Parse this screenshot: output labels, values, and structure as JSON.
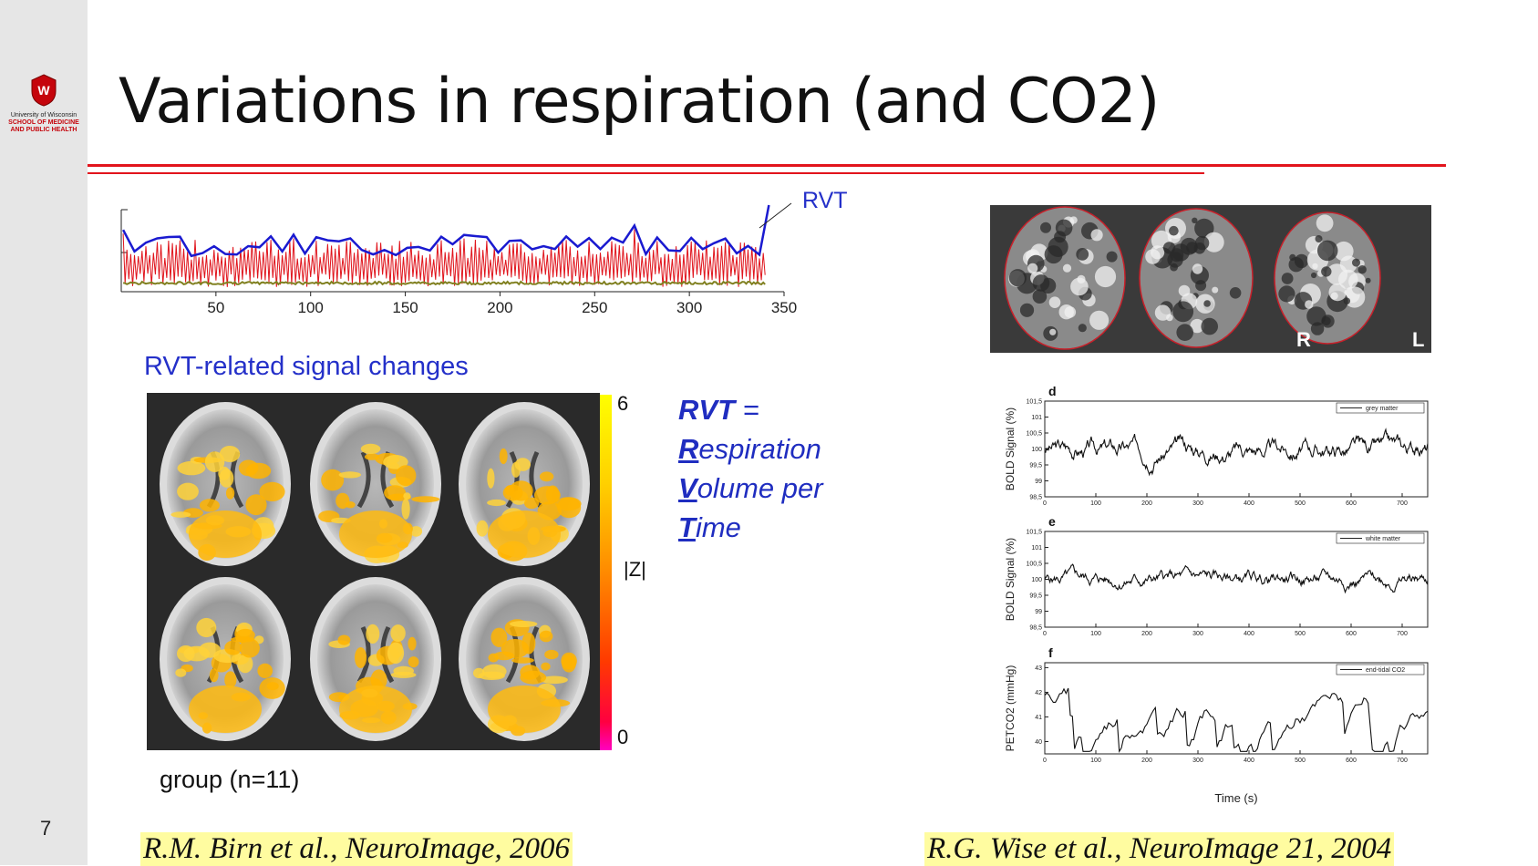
{
  "slide": {
    "title": "Variations in respiration (and CO2)",
    "number": "7"
  },
  "logo": {
    "line1": "University of Wisconsin",
    "line2": "SCHOOL OF MEDICINE",
    "line3": "AND PUBLIC HEALTH"
  },
  "colors": {
    "rule": "#e2141c",
    "accent_blue": "#2430c9",
    "highlight": "#fffca0",
    "rvt_trace": "#1a1ad0",
    "resp_trace": "#e0141c",
    "baseline_trace": "#808020"
  },
  "left": {
    "rvt_label": "RVT",
    "subtitle": "RVT-related signal changes",
    "colorbar": {
      "max": "6",
      "min": "0",
      "label": "|Z|"
    },
    "definition": {
      "line1_bold": "RVT",
      "line1_rest": " =",
      "line2_initial": "R",
      "line2_rest": "espiration",
      "line3_initial": "V",
      "line3_rest": "olume per",
      "line4_initial": "T",
      "line4_rest": "ime"
    },
    "group_label": "group (n=11)",
    "citation": "R.M. Birn et al., NeuroImage, 2006"
  },
  "right": {
    "mri_labels": {
      "right": "R",
      "left": "L"
    },
    "citation": "R.G. Wise et al., NeuroImage 21, 2004",
    "xlabel": "Time (s)"
  },
  "chart_data": [
    {
      "type": "line",
      "x_ticks": [
        "50",
        "100",
        "150",
        "200",
        "250",
        "300",
        "350"
      ],
      "xlim": [
        0,
        350
      ],
      "series": [
        {
          "name": "RVT"
        }
      ]
    },
    {
      "type": "line",
      "panel": "d",
      "ylabel": "BOLD Signal (%)",
      "y_ticks": [
        "101,5",
        "101",
        "100,5",
        "100",
        "99,5",
        "99",
        "98,5"
      ],
      "x_ticks": [
        "0",
        "100",
        "200",
        "300",
        "400",
        "500",
        "600",
        "700"
      ],
      "ylim": [
        98.5,
        101.5
      ],
      "xlim": [
        0,
        750
      ],
      "series": [
        {
          "name": "grey matter"
        }
      ]
    },
    {
      "type": "line",
      "panel": "e",
      "ylabel": "BOLD Signal (%)",
      "y_ticks": [
        "101,5",
        "101",
        "100,5",
        "100",
        "99,5",
        "99",
        "98,5"
      ],
      "x_ticks": [
        "0",
        "100",
        "200",
        "300",
        "400",
        "500",
        "600",
        "700"
      ],
      "ylim": [
        98.5,
        101.5
      ],
      "xlim": [
        0,
        750
      ],
      "series": [
        {
          "name": "white matter"
        }
      ]
    },
    {
      "type": "line",
      "panel": "f",
      "ylabel": "PETCO2 (mmHg)",
      "y_ticks": [
        "43",
        "42",
        "41",
        "40"
      ],
      "x_ticks": [
        "0",
        "100",
        "200",
        "300",
        "400",
        "500",
        "600",
        "700"
      ],
      "ylim": [
        39.5,
        43.2
      ],
      "xlim": [
        0,
        750
      ],
      "series": [
        {
          "name": "end-tidal CO2"
        }
      ]
    }
  ]
}
